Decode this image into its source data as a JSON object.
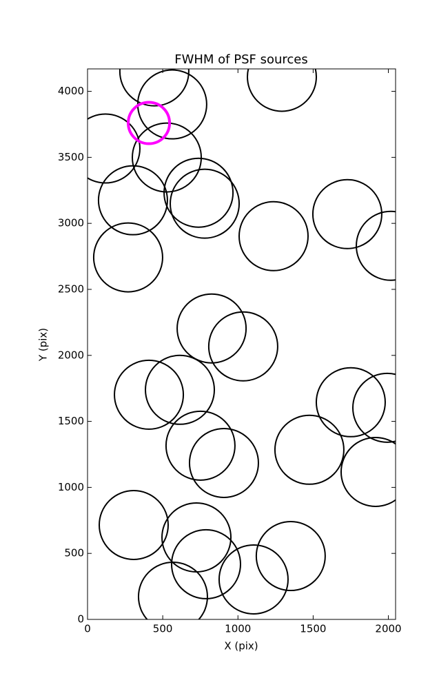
{
  "chart_data": {
    "type": "scatter",
    "title": "FWHM of PSF sources",
    "x_label": "X (pix)",
    "y_label": "Y (pix)",
    "xlim": [
      0,
      2048
    ],
    "ylim": [
      0,
      4170
    ],
    "xticks": [
      0,
      500,
      1000,
      1500,
      2000
    ],
    "yticks": [
      0,
      500,
      1000,
      1500,
      2000,
      2500,
      3000,
      3500,
      4000
    ],
    "series": [
      {
        "name": "sources",
        "color": "#000000",
        "x": [
          444,
          563,
          1292,
          119,
          527,
          302,
          738,
          779,
          1727,
          1237,
          2016,
          270,
          825,
          1035,
          408,
          614,
          1750,
          1993,
          751,
          907,
          1475,
          1915,
          307,
          724,
          788,
          1351,
          1104,
          568
        ],
        "values": [
          4151,
          3901,
          4110,
          3567,
          3499,
          3175,
          3232,
          3149,
          3070,
          2903,
          2830,
          2742,
          2204,
          2068,
          1702,
          1739,
          1645,
          1603,
          1316,
          1185,
          1285,
          1117,
          715,
          621,
          418,
          480,
          303,
          172
        ]
      },
      {
        "name": "selected",
        "color": "#ff00ff",
        "x": [
          408
        ],
        "values": [
          3760
        ]
      }
    ]
  }
}
